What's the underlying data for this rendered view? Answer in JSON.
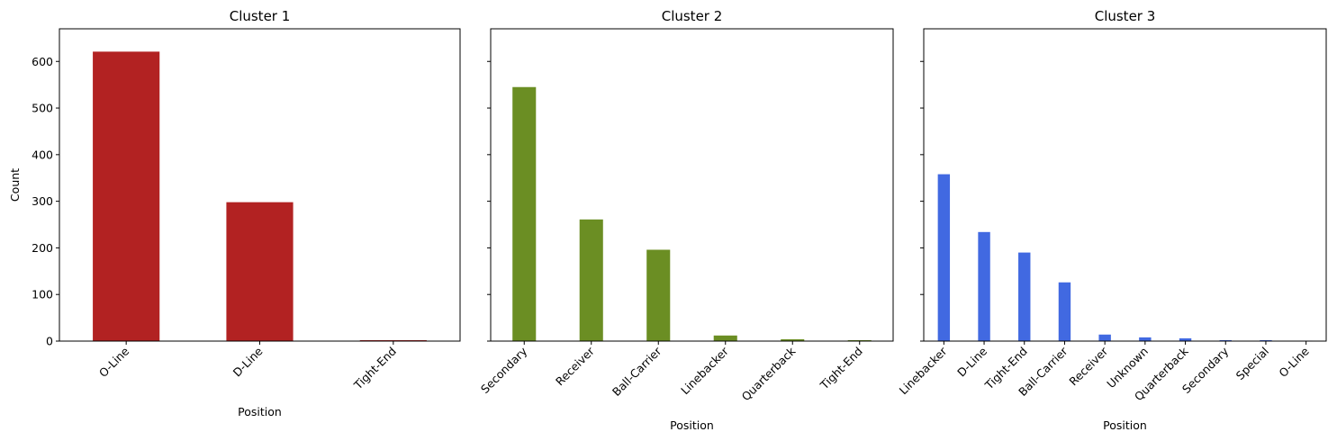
{
  "chart_data": [
    {
      "type": "bar",
      "title": "Cluster 1",
      "xlabel": "Position",
      "ylabel": "Count",
      "ylim": [
        0,
        670
      ],
      "yticks": [
        0,
        100,
        200,
        300,
        400,
        500,
        600
      ],
      "yticklabels": [
        "0",
        "100",
        "200",
        "300",
        "400",
        "500",
        "600"
      ],
      "show_yticklabels": true,
      "color": "#b22222",
      "categories": [
        "O-Line",
        "D-Line",
        "Tight-End"
      ],
      "values": [
        621,
        298,
        2
      ]
    },
    {
      "type": "bar",
      "title": "Cluster 2",
      "xlabel": "Position",
      "ylabel": "",
      "ylim": [
        0,
        670
      ],
      "yticks": [
        0,
        100,
        200,
        300,
        400,
        500,
        600
      ],
      "show_yticklabels": false,
      "color": "#6b8e23",
      "categories": [
        "Secondary",
        "Receiver",
        "Ball-Carrier",
        "Linebacker",
        "Quarterback",
        "Tight-End"
      ],
      "values": [
        545,
        261,
        196,
        12,
        4,
        2
      ]
    },
    {
      "type": "bar",
      "title": "Cluster 3",
      "xlabel": "Position",
      "ylabel": "",
      "ylim": [
        0,
        670
      ],
      "yticks": [
        0,
        100,
        200,
        300,
        400,
        500,
        600
      ],
      "show_yticklabels": false,
      "color": "#4169e1",
      "categories": [
        "Linebacker",
        "D-Line",
        "Tight-End",
        "Ball-Carrier",
        "Receiver",
        "Unknown",
        "Quarterback",
        "Secondary",
        "Special",
        "O-Line"
      ],
      "values": [
        358,
        234,
        190,
        126,
        14,
        8,
        6,
        2,
        2,
        1
      ]
    }
  ]
}
